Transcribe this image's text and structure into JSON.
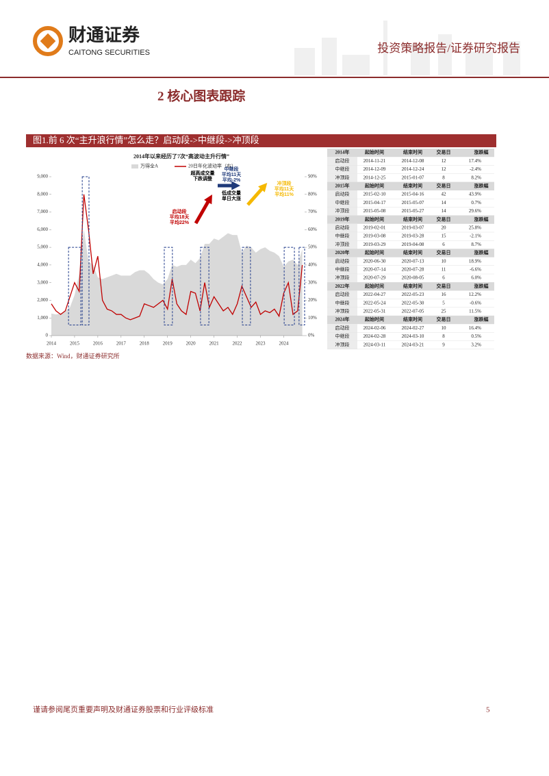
{
  "header": {
    "company": "财通证券",
    "company_en": "CAITONG SECURITIES",
    "report_type": "投资策略报告/证券研究报告"
  },
  "section_title": "2  核心图表跟踪",
  "figure": {
    "caption": "图1.前 6 次“主升浪行情”怎么走？启动段->中继段->冲顶段",
    "chart_data": {
      "type": "combo",
      "title": "2014年以来经历了7次“高波动主升行情”",
      "x": [
        2014.0,
        2014.2,
        2014.4,
        2014.6,
        2014.8,
        2015.0,
        2015.2,
        2015.4,
        2015.6,
        2015.8,
        2016.0,
        2016.2,
        2016.4,
        2016.6,
        2016.8,
        2017.0,
        2017.2,
        2017.4,
        2017.6,
        2017.8,
        2018.0,
        2018.2,
        2018.4,
        2018.6,
        2018.8,
        2019.0,
        2019.2,
        2019.4,
        2019.6,
        2019.8,
        2020.0,
        2020.2,
        2020.4,
        2020.6,
        2020.8,
        2021.0,
        2021.2,
        2021.4,
        2021.6,
        2021.8,
        2022.0,
        2022.2,
        2022.4,
        2022.6,
        2022.8,
        2023.0,
        2023.2,
        2023.4,
        2023.6,
        2023.8,
        2024.0,
        2024.2,
        2024.4,
        2024.6,
        2024.8
      ],
      "series": [
        {
          "name": "万得全A",
          "type": "area",
          "color": "#d9d9d9",
          "values": [
            1250,
            1200,
            1250,
            1400,
            1600,
            2300,
            3500,
            6000,
            4200,
            4000,
            3300,
            3200,
            3300,
            3400,
            3500,
            3400,
            3400,
            3400,
            3600,
            3700,
            3700,
            3500,
            3200,
            3000,
            2900,
            3200,
            4000,
            3900,
            4000,
            4000,
            4300,
            4100,
            4400,
            5200,
            5200,
            5500,
            5400,
            5600,
            5800,
            5700,
            5700,
            4700,
            5100,
            5000,
            4700,
            4900,
            5000,
            4800,
            4700,
            4500,
            3900,
            4200,
            4300,
            4000,
            4900
          ]
        },
        {
          "name": "20日年化波动率（右）",
          "type": "line",
          "axis": "y2",
          "color": "#c00000",
          "values": [
            18,
            14,
            12,
            14,
            22,
            30,
            25,
            80,
            60,
            35,
            45,
            20,
            15,
            14,
            12,
            12,
            10,
            9,
            10,
            11,
            18,
            17,
            16,
            18,
            20,
            15,
            32,
            18,
            14,
            12,
            25,
            24,
            14,
            30,
            16,
            22,
            18,
            14,
            16,
            12,
            18,
            28,
            22,
            16,
            19,
            12,
            14,
            13,
            15,
            11,
            24,
            30,
            12,
            14,
            40
          ]
        }
      ],
      "xlim": [
        2014,
        2024.9
      ],
      "xticks": [
        2014,
        2015,
        2016,
        2017,
        2018,
        2019,
        2020,
        2021,
        2022,
        2023,
        2024
      ],
      "ylim": [
        0,
        9000
      ],
      "yticks": [
        0,
        {
          "value": 1000,
          "label": "1,000"
        },
        {
          "value": 2000,
          "label": "2,000"
        },
        {
          "value": 3000,
          "label": "3,000"
        },
        {
          "value": 4000,
          "label": "4,000"
        },
        {
          "value": 5000,
          "label": "5,000"
        },
        {
          "value": 6000,
          "label": "6,000"
        },
        {
          "value": 7000,
          "label": "7,000"
        },
        {
          "value": 8000,
          "label": "8,000"
        },
        {
          "value": 9000,
          "label": "9,000"
        }
      ],
      "y2lim": [
        0,
        90
      ],
      "y2ticks": [
        {
          "value": 0,
          "label": "0%"
        },
        {
          "value": 10,
          "label": "10%"
        },
        {
          "value": 20,
          "label": "20%"
        },
        {
          "value": 30,
          "label": "30%"
        },
        {
          "value": 40,
          "label": "40%"
        },
        {
          "value": 50,
          "label": "50%"
        },
        {
          "value": 60,
          "label": "60%"
        },
        {
          "value": 70,
          "label": "70%"
        },
        {
          "value": 80,
          "label": "80%"
        },
        {
          "value": 90,
          "label": "90%"
        }
      ],
      "highlights": [
        {
          "x": [
            2014.74,
            2015.27
          ],
          "y": [
            600,
            5000
          ]
        },
        {
          "x": [
            2015.33,
            2015.62
          ],
          "y": [
            600,
            9000
          ]
        },
        {
          "x": [
            2018.86,
            2019.21
          ],
          "y": [
            600,
            5000
          ]
        },
        {
          "x": [
            2020.42,
            2020.78
          ],
          "y": [
            600,
            5000
          ]
        },
        {
          "x": [
            2022.22,
            2022.57
          ],
          "y": [
            600,
            5000
          ]
        },
        {
          "x": [
            2024.02,
            2024.46
          ],
          "y": [
            600,
            5000
          ]
        },
        {
          "x": [
            2024.66,
            2024.9
          ],
          "y": [
            600,
            5000
          ]
        }
      ],
      "annotations": [
        {
          "lines": [
            "启动段",
            "平均18天",
            "平均22%"
          ],
          "color": "#c00000"
        },
        {
          "lines": [
            "超高成交量",
            "下跌调整"
          ],
          "color": "#000000"
        },
        {
          "lines": [
            "中继段",
            "平均11天",
            "平均-2%"
          ],
          "color": "#1f3a7a"
        },
        {
          "lines": [
            "低成交量",
            "单日大涨"
          ],
          "color": "#000000"
        },
        {
          "lines": [
            "冲顶段",
            "平均11天",
            "平均11%"
          ],
          "color": "#f5b800"
        }
      ]
    },
    "table": {
      "groups": [
        {
          "year": "2014年",
          "columns": [
            "起始时间",
            "结束时间",
            "交易日",
            "涨跌幅"
          ],
          "rows": [
            [
              "启动段",
              "2014-11-21",
              "2014-12-08",
              "12",
              "17.4%"
            ],
            [
              "中继段",
              "2014-12-09",
              "2014-12-24",
              "12",
              "-2.4%"
            ],
            [
              "冲顶段",
              "2014-12-25",
              "2015-01-07",
              "8",
              "8.2%"
            ]
          ]
        },
        {
          "year": "2015年",
          "columns": [
            "起始时间",
            "结束时间",
            "交易日",
            "涨跌幅"
          ],
          "rows": [
            [
              "启动段",
              "2015-02-10",
              "2015-04-16",
              "42",
              "43.9%"
            ],
            [
              "中继段",
              "2015-04-17",
              "2015-05-07",
              "14",
              "0.7%"
            ],
            [
              "冲顶段",
              "2015-05-08",
              "2015-05-27",
              "14",
              "29.6%"
            ]
          ]
        },
        {
          "year": "2019年",
          "columns": [
            "起始时间",
            "结束时间",
            "交易日",
            "涨跌幅"
          ],
          "rows": [
            [
              "启动段",
              "2019-02-01",
              "2019-03-07",
              "20",
              "25.8%"
            ],
            [
              "中继段",
              "2019-03-08",
              "2019-03-28",
              "15",
              "-2.1%"
            ],
            [
              "冲顶段",
              "2019-03-29",
              "2019-04-08",
              "6",
              "8.7%"
            ]
          ]
        },
        {
          "year": "2020年",
          "columns": [
            "起始时间",
            "结束时间",
            "交易日",
            "涨跌幅"
          ],
          "rows": [
            [
              "启动段",
              "2020-06-30",
              "2020-07-13",
              "10",
              "18.9%"
            ],
            [
              "中继段",
              "2020-07-14",
              "2020-07-28",
              "11",
              "-6.6%"
            ],
            [
              "冲顶段",
              "2020-07-29",
              "2020-08-05",
              "6",
              "6.0%"
            ]
          ]
        },
        {
          "year": "2022年",
          "columns": [
            "起始时间",
            "结束时间",
            "交易日",
            "涨跌幅"
          ],
          "rows": [
            [
              "启动段",
              "2022-04-27",
              "2022-05-23",
              "16",
              "12.2%"
            ],
            [
              "中继段",
              "2022-05-24",
              "2022-05-30",
              "5",
              "-0.6%"
            ],
            [
              "冲顶段",
              "2022-05-31",
              "2022-07-05",
              "25",
              "11.5%"
            ]
          ]
        },
        {
          "year": "2024年",
          "columns": [
            "起始时间",
            "结束时间",
            "交易日",
            "涨跌幅"
          ],
          "rows": [
            [
              "启动段",
              "2024-02-06",
              "2024-02-27",
              "10",
              "16.4%"
            ],
            [
              "中继段",
              "2024-02-28",
              "2024-03-10",
              "8",
              "0.5%"
            ],
            [
              "冲顶段",
              "2024-03-11",
              "2024-03-21",
              "9",
              "3.2%"
            ]
          ]
        }
      ]
    },
    "source": "数据来源：Wind，财通证券研究所"
  },
  "footer": {
    "disclaimer": "谨请参阅尾页重要声明及财通证券股票和行业评级标准",
    "page": "5"
  }
}
